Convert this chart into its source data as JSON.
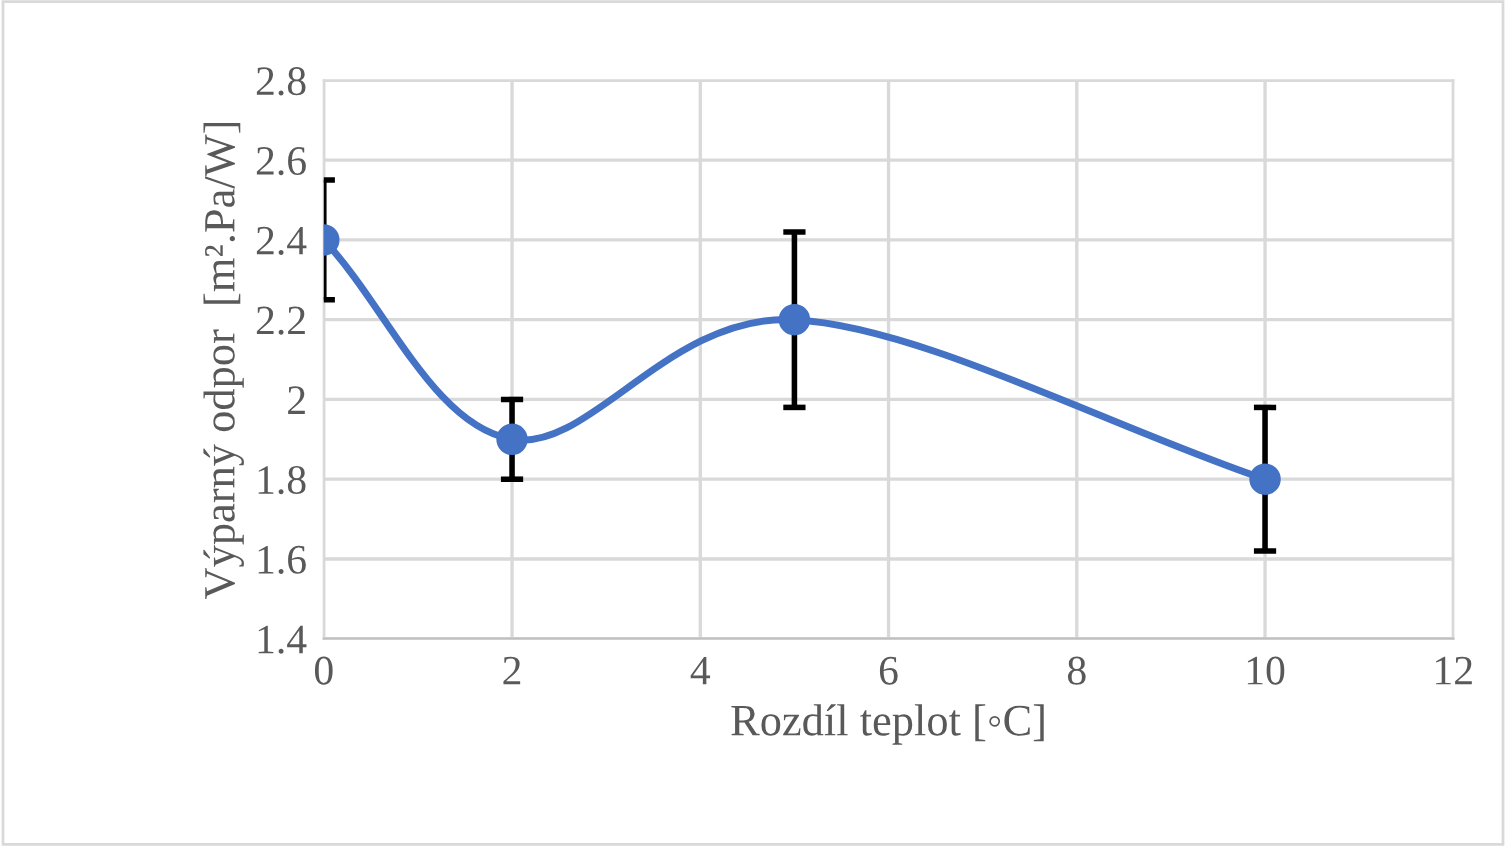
{
  "chart_data": {
    "type": "line",
    "xlabel": "Rozdíl teplot [◦C]",
    "ylabel": "Výparný odpor  [m².Pa/W]",
    "x": [
      0,
      2,
      5,
      10
    ],
    "series": [
      {
        "color": "#4472c4",
        "values": [
          2.4,
          1.9,
          2.2,
          1.8
        ],
        "errors": [
          0.15,
          0.1,
          0.22,
          0.18
        ]
      }
    ],
    "xlim": [
      0,
      12
    ],
    "xticks": [
      0,
      2,
      4,
      6,
      8,
      10,
      12
    ],
    "ylim": [
      1.4,
      2.8
    ],
    "yticks": [
      1.4,
      1.6,
      1.8,
      2,
      2.2,
      2.4,
      2.6,
      2.8
    ],
    "grid": true,
    "marker": "circle",
    "line_style": "solid",
    "legend": false
  }
}
